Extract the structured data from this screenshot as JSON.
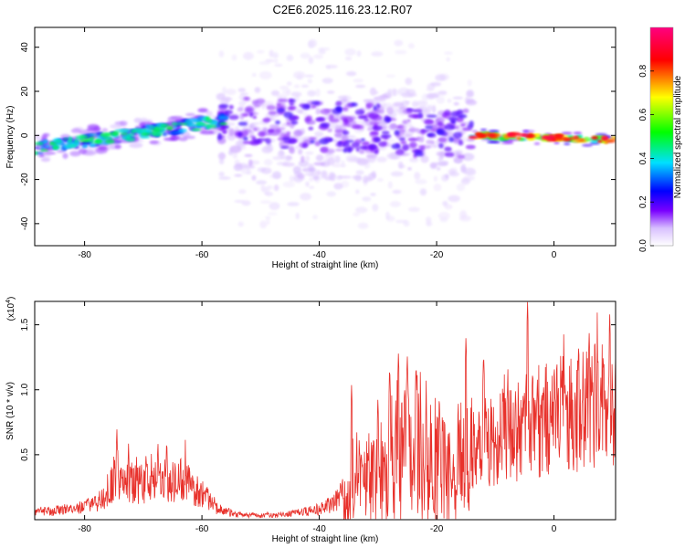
{
  "figure": {
    "title": "C2E6.2025.116.23.12.R07"
  },
  "chart_data": [
    {
      "type": "heatmap",
      "title": "C2E6.2025.116.23.12.R07",
      "xlabel": "Height of straight line (km)",
      "ylabel": "Frequency (Hz)",
      "xlim": [
        -88.5,
        10.5
      ],
      "ylim": [
        -50,
        49
      ],
      "x_ticks": [
        -80,
        -60,
        -40,
        -20,
        0
      ],
      "x_tick_labels": [
        "-80",
        "-60",
        "-40",
        "-20",
        "0"
      ],
      "y_ticks": [
        -40,
        -20,
        0,
        20,
        40
      ],
      "y_tick_labels": [
        "-40",
        "-20",
        "0",
        "20",
        "40"
      ],
      "grid": false,
      "colorbar": {
        "label": "Normalized spectral amplitude",
        "range": [
          0,
          1
        ],
        "ticks": [
          0,
          0.2,
          0.4,
          0.6,
          0.8
        ],
        "tick_labels": [
          "0.0",
          "0.2",
          "0.4",
          "0.6",
          "0.8"
        ],
        "colormap": [
          "#ffffff",
          "#7a00ff",
          "#0000ff",
          "#00e0ff",
          "#00ff00",
          "#ffff00",
          "#ff0000",
          "#ff0080"
        ]
      },
      "ridges": [
        {
          "x_range": [
            -88.5,
            -56
          ],
          "freq_start": -6,
          "freq_end": 7,
          "amplitude": 0.32
        },
        {
          "x_range": [
            -56,
            -14
          ],
          "freq_start": 7,
          "freq_end": 0,
          "amplitude": 0.12
        },
        {
          "x_range": [
            -14,
            10.5
          ],
          "freq_start": 0,
          "freq_end": -2,
          "amplitude": 0.85
        }
      ]
    },
    {
      "type": "line",
      "xlabel": "Height of straight line (km)",
      "ylabel": "SNR (10 * v/v)",
      "y_multiplier_label": "(x10",
      "y_multiplier_exp": "4",
      "y_multiplier_close": ")",
      "xlim": [
        -88.5,
        10.5
      ],
      "ylim": [
        0,
        1.68
      ],
      "x_ticks": [
        -80,
        -60,
        -40,
        -20,
        0
      ],
      "x_tick_labels": [
        "-80",
        "-60",
        "-40",
        "-20",
        "0"
      ],
      "y_ticks": [
        0.5,
        1.0,
        1.5
      ],
      "y_tick_labels": [
        "0.5",
        "1.0",
        "1.5"
      ],
      "grid": false,
      "series_color": "#e8322c",
      "envelope_x": [
        -88.5,
        -85,
        -80,
        -77,
        -75,
        -73,
        -70,
        -66,
        -63,
        -60,
        -57,
        -54,
        -50,
        -46,
        -42,
        -39,
        -37,
        -35.5,
        -34.5,
        -33,
        -30,
        -27,
        -25,
        -22,
        -20,
        -19,
        -18,
        -15,
        -10,
        -5,
        0,
        5,
        8,
        10.5
      ],
      "envelope_y": [
        0.07,
        0.09,
        0.12,
        0.2,
        0.4,
        0.38,
        0.35,
        0.4,
        0.38,
        0.25,
        0.1,
        0.05,
        0.04,
        0.05,
        0.08,
        0.12,
        0.2,
        0.3,
        0.55,
        0.45,
        0.55,
        0.8,
        0.9,
        0.8,
        0.75,
        0.6,
        0.65,
        0.7,
        0.8,
        0.9,
        1.05,
        1.1,
        1.15,
        1.1
      ],
      "spikes": [
        {
          "x": -74.5,
          "y": 0.72
        },
        {
          "x": -72.5,
          "y": 0.6
        },
        {
          "x": -67.5,
          "y": 0.62
        },
        {
          "x": -66,
          "y": 0.64
        },
        {
          "x": -34.5,
          "y": 1.05
        },
        {
          "x": -30,
          "y": 0.95
        },
        {
          "x": -28,
          "y": 1.2
        },
        {
          "x": -26.5,
          "y": 1.3
        },
        {
          "x": -25,
          "y": 1.28
        },
        {
          "x": -23.5,
          "y": 1.22
        },
        {
          "x": -15,
          "y": 1.42
        },
        {
          "x": -12,
          "y": 1.3
        },
        {
          "x": -4.5,
          "y": 1.68
        },
        {
          "x": 6,
          "y": 1.45
        },
        {
          "x": 9.5,
          "y": 1.6
        }
      ]
    }
  ]
}
